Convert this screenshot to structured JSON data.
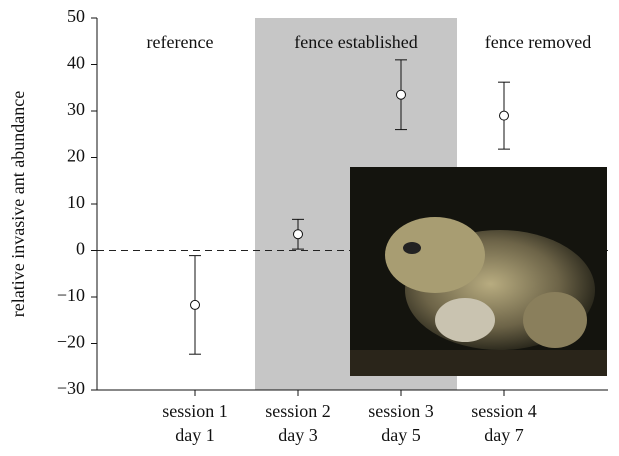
{
  "chart_data": {
    "type": "errorbar",
    "ylabel": "relative invasive ant abundance",
    "categories": [
      [
        "session 1",
        "day 1"
      ],
      [
        "session 2",
        "day 3"
      ],
      [
        "session 3",
        "day 5"
      ],
      [
        "session 4",
        "day 7"
      ]
    ],
    "values": [
      -11.7,
      3.5,
      33.5,
      29
    ],
    "errors": [
      10.6,
      3.2,
      7.5,
      7.2
    ],
    "annotations": [
      "reference",
      "fence established",
      "fence removed"
    ],
    "ylim": [
      -30,
      50
    ],
    "yticks": [
      {
        "value": -30,
        "label": "−30"
      },
      {
        "value": -20,
        "label": "−20"
      },
      {
        "value": -10,
        "label": "−10"
      },
      0,
      10,
      20,
      30,
      40,
      50
    ]
  }
}
